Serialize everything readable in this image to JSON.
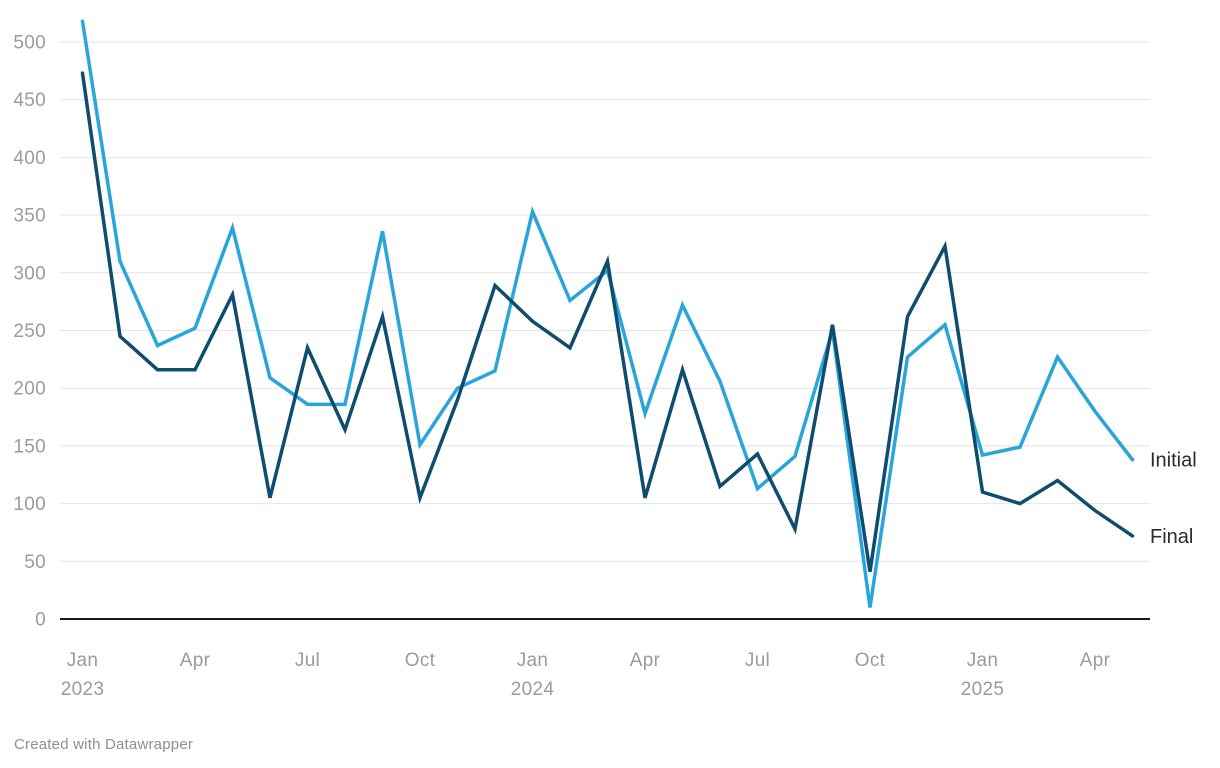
{
  "chart_data": {
    "type": "line",
    "x": [
      "Jan 2023",
      "Feb 2023",
      "Mar 2023",
      "Apr 2023",
      "May 2023",
      "Jun 2023",
      "Jul 2023",
      "Aug 2023",
      "Sep 2023",
      "Oct 2023",
      "Nov 2023",
      "Dec 2023",
      "Jan 2024",
      "Feb 2024",
      "Mar 2024",
      "Apr 2024",
      "May 2024",
      "Jun 2024",
      "Jul 2024",
      "Aug 2024",
      "Sep 2024",
      "Oct 2024",
      "Nov 2024",
      "Dec 2024",
      "Jan 2025",
      "Feb 2025",
      "Mar 2025",
      "Apr 2025",
      "May 2025"
    ],
    "series": [
      {
        "name": "Initial",
        "color": "#29a5da",
        "values": [
          518,
          310,
          237,
          252,
          339,
          209,
          186,
          186,
          336,
          151,
          200,
          215,
          353,
          276,
          302,
          178,
          272,
          206,
          113,
          141,
          250,
          10,
          227,
          255,
          142,
          149,
          227,
          180,
          138
        ]
      },
      {
        "name": "Final",
        "color": "#0f4d6e",
        "values": [
          473,
          245,
          216,
          216,
          281,
          105,
          235,
          164,
          262,
          105,
          190,
          289,
          258,
          235,
          310,
          105,
          216,
          115,
          143,
          78,
          255,
          41,
          262,
          323,
          110,
          100,
          120,
          94,
          72
        ]
      }
    ],
    "ylim": [
      0,
      500
    ],
    "y_ticks": [
      0,
      50,
      100,
      150,
      200,
      250,
      300,
      350,
      400,
      450,
      500
    ],
    "x_ticks": [
      {
        "index": 0,
        "label": "Jan",
        "year": "2023"
      },
      {
        "index": 3,
        "label": "Apr"
      },
      {
        "index": 6,
        "label": "Jul"
      },
      {
        "index": 9,
        "label": "Oct"
      },
      {
        "index": 12,
        "label": "Jan",
        "year": "2024"
      },
      {
        "index": 15,
        "label": "Apr"
      },
      {
        "index": 18,
        "label": "Jul"
      },
      {
        "index": 21,
        "label": "Oct"
      },
      {
        "index": 24,
        "label": "Jan",
        "year": "2025"
      },
      {
        "index": 27,
        "label": "Apr"
      }
    ],
    "grid": true,
    "title": "",
    "xlabel": "",
    "ylabel": "",
    "legend_position": "line-end-labels-right",
    "line_labels": [
      "Initial",
      "Final"
    ]
  },
  "colors": {
    "background": "#ffffff",
    "gridline": "#e4e4e4",
    "axis_line": "#1a1a1a",
    "tick_text": "#9b9b9b",
    "label_text": "#2b2b2b",
    "initial_line": "#29a5da",
    "final_line": "#0f4d6e"
  },
  "footer": {
    "credit": "Created with Datawrapper"
  }
}
